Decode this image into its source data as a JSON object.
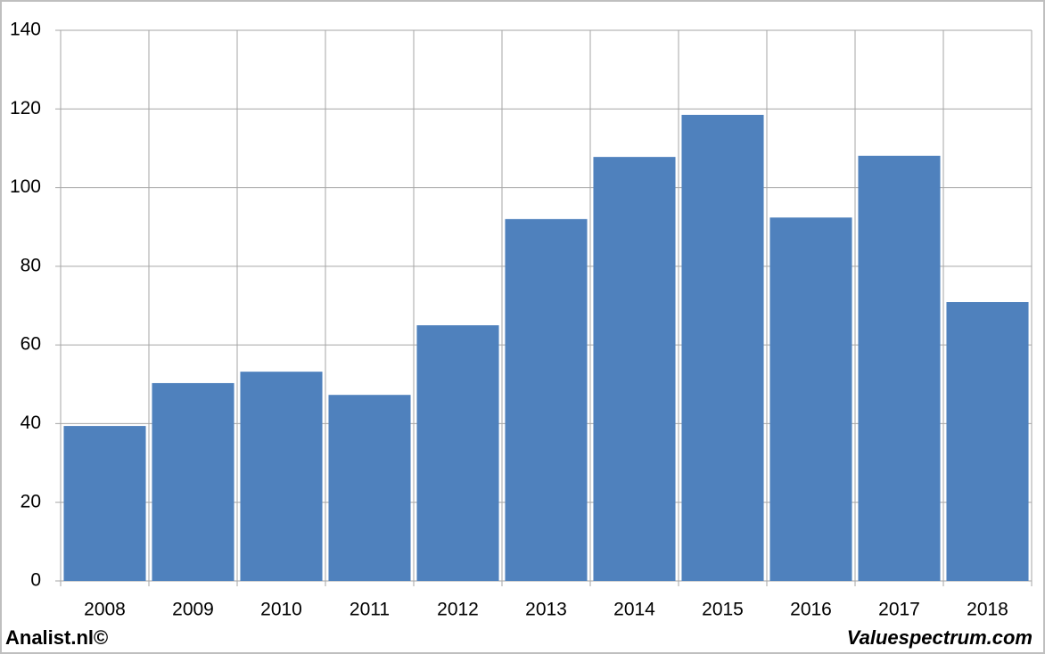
{
  "chart_data": {
    "type": "bar",
    "categories": [
      "2008",
      "2009",
      "2010",
      "2011",
      "2012",
      "2013",
      "2014",
      "2015",
      "2016",
      "2017",
      "2018"
    ],
    "values": [
      39.4,
      50.3,
      53.2,
      47.3,
      65.0,
      92.0,
      107.8,
      118.5,
      92.4,
      108.1,
      70.9
    ],
    "color": "#4f81bd",
    "ylim": [
      0,
      140
    ],
    "yticks": [
      0,
      20,
      40,
      60,
      80,
      100,
      120,
      140
    ],
    "grid": true,
    "footer_left": "Analist.nl©",
    "footer_right": "Valuespectrum.com"
  }
}
